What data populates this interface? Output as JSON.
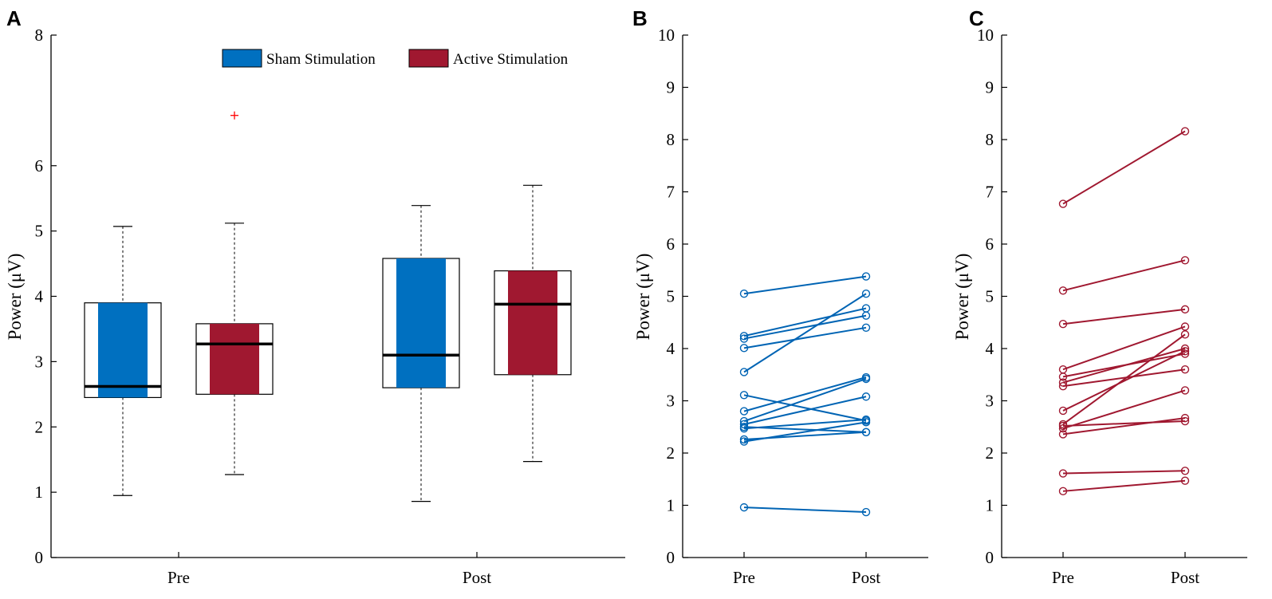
{
  "chart_data": [
    {
      "panel_label": "A",
      "type": "box",
      "ylabel": "Power (μV)",
      "ylim": [
        0,
        8
      ],
      "yticks": [
        "0",
        "1",
        "2",
        "3",
        "4",
        "5",
        "6",
        "8"
      ],
      "categories": [
        "Pre",
        "Post"
      ],
      "legend": [
        "Sham Stimulation",
        "Active Stimulation"
      ],
      "series": [
        {
          "name": "Sham Stimulation",
          "color": "#0070c0",
          "boxes": [
            {
              "category": "Pre",
              "min": 0.95,
              "q1": 2.45,
              "median": 2.62,
              "q3": 3.9,
              "max": 5.07
            },
            {
              "category": "Post",
              "min": 0.86,
              "q1": 2.6,
              "median": 3.1,
              "q3": 4.58,
              "max": 5.39
            }
          ]
        },
        {
          "name": "Active Stimulation",
          "color": "#a01830",
          "boxes": [
            {
              "category": "Pre",
              "min": 1.27,
              "q1": 2.5,
              "median": 3.27,
              "q3": 3.58,
              "max": 5.12,
              "outliers": [
                6.77
              ]
            },
            {
              "category": "Post",
              "min": 1.47,
              "q1": 2.8,
              "median": 3.88,
              "q3": 4.39,
              "max": 5.7
            }
          ]
        }
      ],
      "outlier_color": "#ff0000"
    },
    {
      "panel_label": "B",
      "type": "line",
      "ylabel": "Power (μV)",
      "ylim": [
        0,
        10
      ],
      "yticks": [
        "0",
        "1",
        "2",
        "3",
        "4",
        "5",
        "6",
        "7",
        "8",
        "9",
        "10"
      ],
      "categories": [
        "Pre",
        "Post"
      ],
      "color": "#0064b4",
      "pairs": [
        [
          5.05,
          5.38
        ],
        [
          4.24,
          4.77
        ],
        [
          4.19,
          4.63
        ],
        [
          4.01,
          4.4
        ],
        [
          3.55,
          5.05
        ],
        [
          3.11,
          2.62
        ],
        [
          2.8,
          3.45
        ],
        [
          2.61,
          3.42
        ],
        [
          2.55,
          3.08
        ],
        [
          2.5,
          2.4
        ],
        [
          2.47,
          2.64
        ],
        [
          2.26,
          2.4
        ],
        [
          2.22,
          2.59
        ],
        [
          0.96,
          0.87
        ]
      ]
    },
    {
      "panel_label": "C",
      "type": "line",
      "ylabel": "Power (μV)",
      "ylim": [
        0,
        10
      ],
      "yticks": [
        "0",
        "1",
        "2",
        "3",
        "4",
        "5",
        "6",
        "7",
        "8",
        "9",
        "10"
      ],
      "categories": [
        "Pre",
        "Post"
      ],
      "color": "#a01830",
      "pairs": [
        [
          6.77,
          8.16
        ],
        [
          5.11,
          5.69
        ],
        [
          4.47,
          4.75
        ],
        [
          3.6,
          4.42
        ],
        [
          3.46,
          3.9
        ],
        [
          3.35,
          4.0
        ],
        [
          3.28,
          3.6
        ],
        [
          2.81,
          3.95
        ],
        [
          2.55,
          4.27
        ],
        [
          2.47,
          3.2
        ],
        [
          2.36,
          2.67
        ],
        [
          2.52,
          2.61
        ],
        [
          1.61,
          1.66
        ],
        [
          1.27,
          1.47
        ]
      ]
    }
  ]
}
